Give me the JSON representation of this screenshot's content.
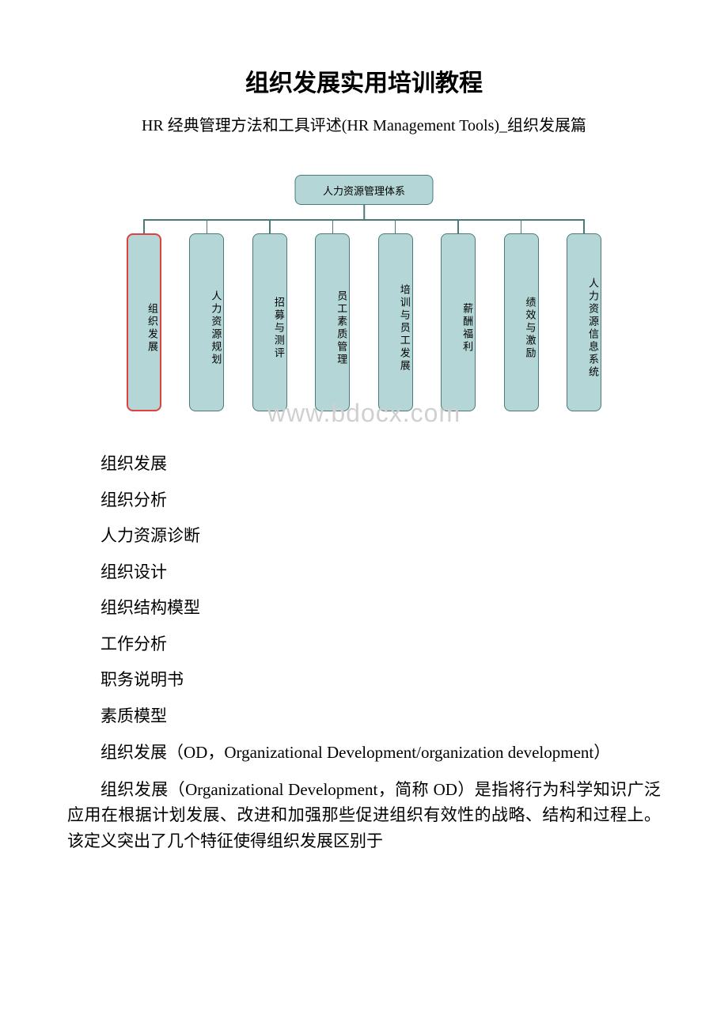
{
  "title": "组织发展实用培训教程",
  "subtitle": "HR 经典管理方法和工具评述(HR Management Tools)_组织发展篇",
  "org_chart": {
    "type": "tree",
    "root_label": "人力资源管理体系",
    "node_bg_color": "#b5d6d6",
    "node_border_color": "#4a7a7a",
    "highlight_border_color": "#e04040",
    "connector_color": "#4a7a7a",
    "children": [
      {
        "label": "组织发展",
        "highlighted": true
      },
      {
        "label": "人力资源规划",
        "highlighted": false
      },
      {
        "label": "招募与测评",
        "highlighted": false
      },
      {
        "label": "员工素质管理",
        "highlighted": false
      },
      {
        "label": "培训与员工发展",
        "highlighted": false
      },
      {
        "label": "薪酬福利",
        "highlighted": false
      },
      {
        "label": "绩效与激励",
        "highlighted": false
      },
      {
        "label": "人力资源信息系统",
        "highlighted": false
      }
    ]
  },
  "watermark": "www.bdocx.com",
  "list_items": [
    "组织发展",
    "组织分析",
    "人力资源诊断",
    "组织设计",
    "组织结构模型",
    "工作分析",
    "职务说明书",
    "素质模型"
  ],
  "paragraphs": [
    "组织发展（OD，Organizational Development/organization development）",
    "组织发展（Organizational Development，简称 OD）是指将行为科学知识广泛应用在根据计划发展、改进和加强那些促进组织有效性的战略、结构和过程上。该定义突出了几个特征使得组织发展区别于"
  ]
}
